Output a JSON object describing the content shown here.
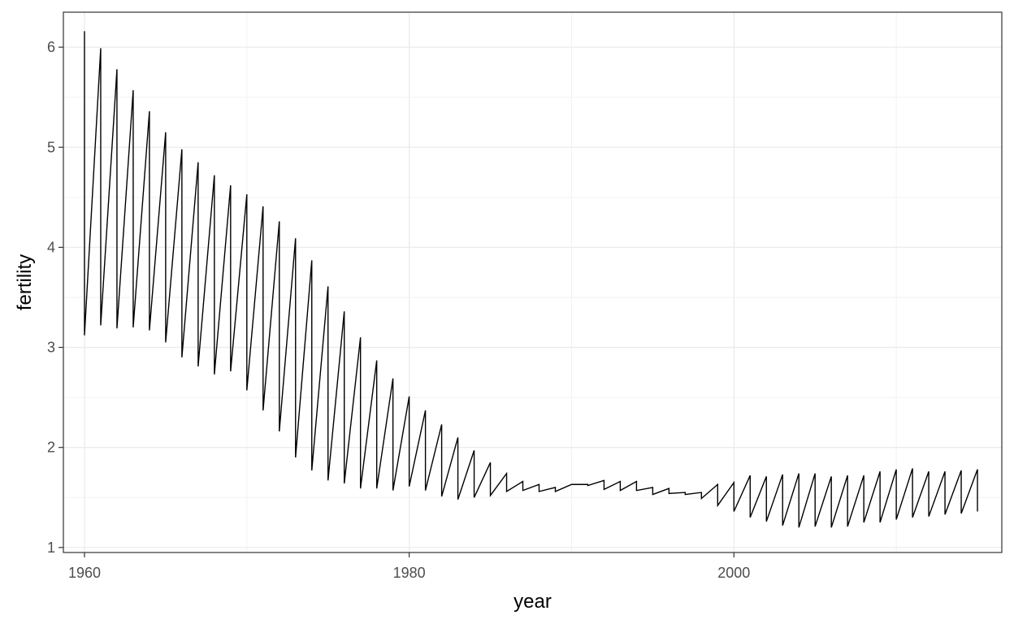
{
  "chart_data": {
    "type": "line",
    "title": "",
    "xlabel": "year",
    "ylabel": "fertility",
    "xlim": [
      1958.7,
      2016.5
    ],
    "ylim": [
      0.95,
      6.35
    ],
    "xticks": [
      1960,
      1980,
      2000
    ],
    "xticks_minor": [
      1970,
      1990,
      2010
    ],
    "yticks": [
      1,
      2,
      3,
      4,
      5,
      6
    ],
    "yticks_minor": [
      1.5,
      2.5,
      3.5,
      4.5,
      5.5
    ],
    "grid": true,
    "legend": "none",
    "line_color": "#000000",
    "series": [
      {
        "x": [
          1960,
          1960,
          1961,
          1961,
          1962,
          1962,
          1963,
          1963,
          1964,
          1964,
          1965,
          1965,
          1966,
          1966,
          1967,
          1967,
          1968,
          1968,
          1969,
          1969,
          1970,
          1970,
          1971,
          1971,
          1972,
          1972,
          1973,
          1973,
          1974,
          1974,
          1975,
          1975,
          1976,
          1976,
          1977,
          1977,
          1978,
          1978,
          1979,
          1979,
          1980,
          1980,
          1981,
          1981,
          1982,
          1982,
          1983,
          1983,
          1984,
          1984,
          1985,
          1985,
          1986,
          1986,
          1987,
          1987,
          1988,
          1988,
          1989,
          1989,
          1990,
          1990,
          1991,
          1991,
          1992,
          1992,
          1993,
          1993,
          1994,
          1994,
          1995,
          1995,
          1996,
          1996,
          1997,
          1997,
          1998,
          1998,
          1999,
          1999,
          2000,
          2000,
          2001,
          2001,
          2002,
          2002,
          2003,
          2003,
          2004,
          2004,
          2005,
          2005,
          2006,
          2006,
          2007,
          2007,
          2008,
          2008,
          2009,
          2009,
          2010,
          2010,
          2011,
          2011,
          2012,
          2012,
          2013,
          2013,
          2014,
          2014,
          2015,
          2015
        ],
        "y": [
          6.16,
          3.12,
          5.99,
          3.22,
          5.78,
          3.19,
          5.57,
          3.2,
          5.36,
          3.17,
          5.15,
          3.05,
          4.98,
          2.9,
          4.85,
          2.81,
          4.72,
          2.73,
          4.62,
          2.76,
          4.53,
          2.57,
          4.41,
          2.37,
          4.26,
          2.16,
          4.09,
          1.9,
          3.87,
          1.77,
          3.61,
          1.67,
          3.36,
          1.64,
          3.1,
          1.59,
          2.87,
          1.59,
          2.69,
          1.57,
          2.51,
          1.61,
          2.37,
          1.57,
          2.23,
          1.51,
          2.1,
          1.48,
          1.97,
          1.5,
          1.85,
          1.52,
          1.74,
          1.56,
          1.66,
          1.57,
          1.63,
          1.56,
          1.6,
          1.56,
          1.63,
          1.63,
          1.63,
          1.62,
          1.67,
          1.58,
          1.66,
          1.57,
          1.66,
          1.57,
          1.6,
          1.53,
          1.59,
          1.54,
          1.55,
          1.53,
          1.55,
          1.49,
          1.63,
          1.42,
          1.65,
          1.36,
          1.72,
          1.3,
          1.71,
          1.26,
          1.73,
          1.22,
          1.74,
          1.2,
          1.74,
          1.21,
          1.71,
          1.2,
          1.72,
          1.21,
          1.72,
          1.25,
          1.76,
          1.25,
          1.78,
          1.28,
          1.79,
          1.3,
          1.76,
          1.31,
          1.76,
          1.33,
          1.77,
          1.34,
          1.78,
          1.36
        ]
      }
    ]
  }
}
